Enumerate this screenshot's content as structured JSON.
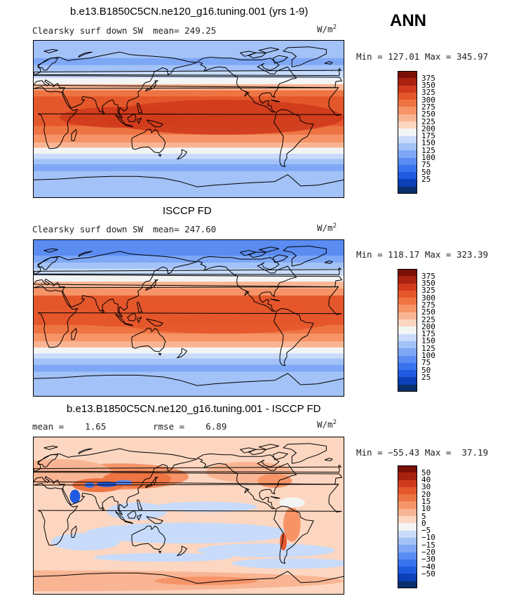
{
  "season": "ANN",
  "palette_main": [
    "#08306b",
    "#0d3fb8",
    "#1f5be0",
    "#3a73ee",
    "#5a8cf2",
    "#7ea7f5",
    "#a3c2f7",
    "#c8dbfa",
    "#f3f4f4",
    "#fcd6c0",
    "#f9b593",
    "#f69468",
    "#ee7443",
    "#e4572b",
    "#cf3b1c",
    "#a8220f",
    "#7a1007"
  ],
  "palette_diff": [
    "#08306b",
    "#0d3fb8",
    "#1f5be0",
    "#3a73ee",
    "#5a8cf2",
    "#7ea7f5",
    "#a3c2f7",
    "#c8dbfa",
    "#f3f4f4",
    "#fcd6c0",
    "#f9b593",
    "#f69468",
    "#ee7443",
    "#e4572b",
    "#cf3b1c",
    "#a8220f",
    "#7a1007"
  ],
  "panels": [
    {
      "title": "b.e13.B1850C5CN.ne120_g16.tuning.001 (yrs 1-9)",
      "left_label": "Clearsky surf down SW",
      "mean_label": "mean= 249.25",
      "unit": "W/m",
      "unit_exp": "2",
      "minmax": "Min = 127.01 Max = 345.97",
      "ticks": [
        "375",
        "350",
        "325",
        "300",
        "275",
        "250",
        "225",
        "200",
        "175",
        "150",
        "125",
        "100",
        "75",
        "50",
        "25"
      ],
      "type": "model"
    },
    {
      "title": "ISCCP FD",
      "left_label": "Clearsky surf down SW",
      "mean_label": "mean= 247.60",
      "unit": "W/m",
      "unit_exp": "2",
      "minmax": "Min = 118.17 Max = 323.39",
      "ticks": [
        "375",
        "350",
        "325",
        "300",
        "275",
        "250",
        "225",
        "200",
        "175",
        "150",
        "125",
        "100",
        "75",
        "50",
        "25"
      ],
      "type": "obs"
    },
    {
      "title": "b.e13.B1850C5CN.ne120_g16.tuning.001 - ISCCP FD",
      "left_label": "mean =    1.65",
      "mean_label": "rmse =    6.89",
      "unit": "W/m",
      "unit_exp": "2",
      "minmax": "Min = −55.43 Max =  37.19",
      "ticks": [
        "50",
        "40",
        "30",
        "20",
        "15",
        "10",
        "5",
        "0",
        "−5",
        "−10",
        "−15",
        "−20",
        "−30",
        "−40",
        "−50"
      ],
      "type": "diff"
    }
  ]
}
